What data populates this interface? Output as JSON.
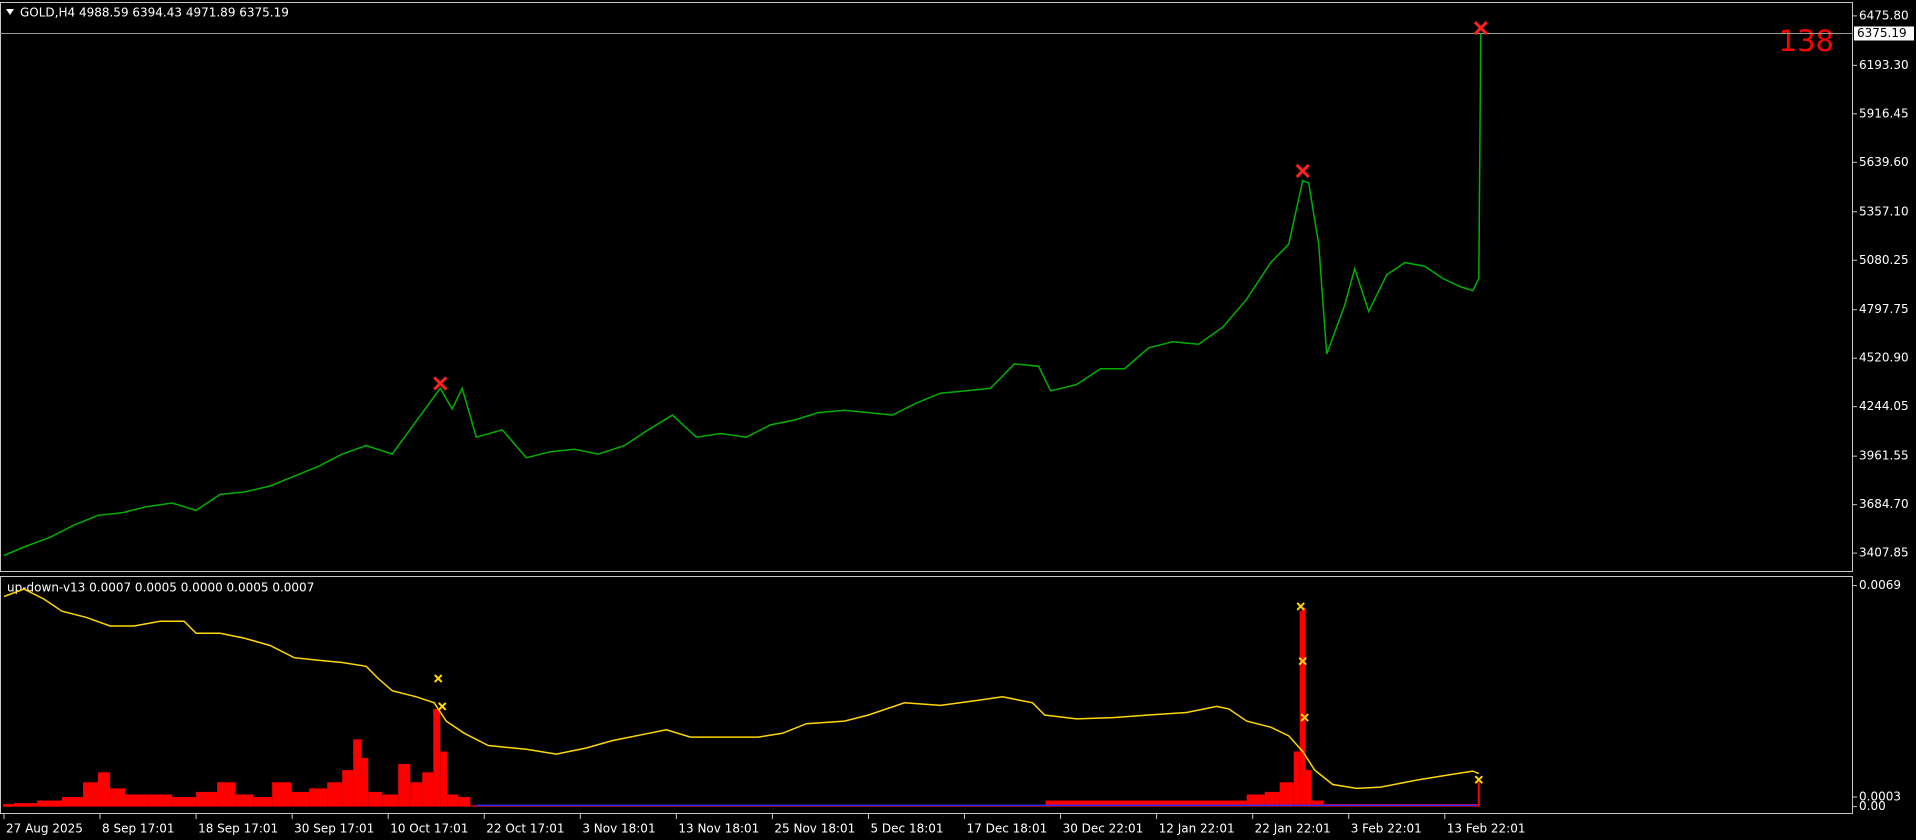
{
  "chart_data": [
    {
      "type": "line",
      "title": "GOLD,H4 4988.59 6394.43 4971.89 6375.19",
      "annotation": "138",
      "current_price": 6375.19,
      "ylim": [
        3300,
        6555
      ],
      "yticks": [
        {
          "value": 6475.8,
          "label": "6475.80"
        },
        {
          "value": 6193.3,
          "label": "6193.30"
        },
        5916.45,
        {
          "value": 5639.6,
          "label": "5639.60"
        },
        {
          "value": 5357.1,
          "label": "5357.10"
        },
        5080.25,
        4797.75,
        {
          "value": 4520.9,
          "label": "4520.90"
        },
        4244.05,
        3961.55,
        {
          "value": 3684.7,
          "label": "3684.70"
        },
        3407.85
      ],
      "xlim": [
        -2,
        924
      ],
      "xticks": [
        {
          "value": 0,
          "label": "27 Aug 2025"
        },
        {
          "value": 48,
          "label": "8 Sep 17:01"
        },
        {
          "value": 96,
          "label": "18 Sep 17:01"
        },
        {
          "value": 144,
          "label": "30 Sep 17:01"
        },
        {
          "value": 192,
          "label": "10 Oct 17:01"
        },
        {
          "value": 240,
          "label": "22 Oct 17:01"
        },
        {
          "value": 288,
          "label": "3 Nov 18:01"
        },
        {
          "value": 336,
          "label": "13 Nov 18:01"
        },
        {
          "value": 384,
          "label": "25 Nov 18:01"
        },
        {
          "value": 432,
          "label": "5 Dec 18:01"
        },
        {
          "value": 480,
          "label": "17 Dec 18:01"
        },
        {
          "value": 528,
          "label": "30 Dec 22:01"
        },
        {
          "value": 576,
          "label": "12 Jan 22:01"
        },
        {
          "value": 624,
          "label": "22 Jan 22:01"
        },
        {
          "value": 672,
          "label": "3 Feb 22:01"
        },
        {
          "value": 720,
          "label": "13 Feb 22:01"
        }
      ],
      "series": [
        {
          "color": "#00b000",
          "x": [
            0,
            10,
            23,
            35,
            47,
            59,
            71,
            84,
            96,
            108,
            120,
            133,
            145,
            157,
            169,
            181,
            194,
            206,
            218,
            224,
            229,
            236,
            249,
            261,
            273,
            285,
            297,
            310,
            322,
            334,
            346,
            358,
            371,
            383,
            395,
            407,
            420,
            432,
            444,
            456,
            468,
            481,
            493,
            505,
            517,
            523,
            536,
            548,
            560,
            572,
            584,
            597,
            609,
            621,
            633,
            642,
            649,
            652,
            657,
            661,
            670,
            675,
            682,
            691,
            700,
            710,
            719,
            728,
            734,
            737,
            738
          ],
          "values": [
            3394,
            3443,
            3498,
            3568,
            3624,
            3638,
            3673,
            3694,
            3652,
            3743,
            3757,
            3791,
            3847,
            3903,
            3973,
            4022,
            3973,
            4161,
            4349,
            4231,
            4349,
            4070,
            4112,
            3952,
            3987,
            4001,
            3973,
            4022,
            4112,
            4196,
            4070,
            4091,
            4070,
            4140,
            4168,
            4210,
            4224,
            4210,
            4196,
            4265,
            4321,
            4335,
            4349,
            4489,
            4475,
            4335,
            4370,
            4461,
            4461,
            4580,
            4615,
            4601,
            4698,
            4858,
            5067,
            5172,
            5535,
            5521,
            5172,
            4545,
            4823,
            5032,
            4788,
            4997,
            5067,
            5046,
            4976,
            4928,
            4907,
            4976,
            6375.19
          ]
        }
      ],
      "markers": {
        "color": "#ff2020",
        "x": [
          218,
          649,
          738
        ],
        "values": [
          4377,
          5590,
          6406
        ]
      }
    },
    {
      "type": "line",
      "title": "up-down-v13 0.0007 0.0005 0.0000 0.0005 0.0007",
      "ylim": [
        -0.00023,
        0.0072
      ],
      "yticks": [
        0.0069,
        {
          "value": 0,
          "label": "0.00"
        },
        0.0003
      ],
      "xlim": [
        -2,
        924
      ],
      "series": [
        {
          "color": "#ffd700",
          "x": [
            0,
            10,
            20,
            29,
            41,
            53,
            65,
            78,
            90,
            96,
            108,
            120,
            133,
            145,
            157,
            169,
            181,
            187,
            194,
            206,
            215,
            221,
            230,
            242,
            261,
            276,
            291,
            304,
            316,
            331,
            343,
            358,
            377,
            389,
            401,
            420,
            432,
            450,
            468,
            487,
            499,
            514,
            520,
            536,
            554,
            572,
            591,
            606,
            612,
            621,
            633,
            642,
            649,
            655,
            664,
            676,
            688,
            707,
            722,
            734,
            737
          ],
          "values": [
            0.00656,
            0.00679,
            0.00648,
            0.0061,
            0.00591,
            0.00564,
            0.00564,
            0.00579,
            0.00579,
            0.00541,
            0.00541,
            0.00526,
            0.00503,
            0.00465,
            0.00457,
            0.0045,
            0.00438,
            0.004,
            0.00362,
            0.00343,
            0.00324,
            0.00267,
            0.00229,
            0.00191,
            0.00179,
            0.00164,
            0.00183,
            0.00206,
            0.00221,
            0.0024,
            0.00217,
            0.00217,
            0.00217,
            0.00229,
            0.00259,
            0.00267,
            0.00286,
            0.00324,
            0.00316,
            0.00332,
            0.00343,
            0.00324,
            0.00286,
            0.00274,
            0.00278,
            0.00286,
            0.00294,
            0.00313,
            0.00305,
            0.00267,
            0.00248,
            0.00221,
            0.00172,
            0.00114,
            0.00069,
            0.00057,
            0.00061,
            0.00084,
            0.00099,
            0.00111,
            0.00103
          ]
        },
        {
          "color": "#ff0000",
          "type": "bar",
          "x": [
            0,
            10,
            23,
            35,
            44,
            50,
            56,
            65,
            78,
            90,
            102,
            111,
            120,
            129,
            139,
            148,
            157,
            166,
            172,
            177,
            180,
            184,
            194,
            200,
            206,
            212,
            217,
            219,
            224,
            230,
            236,
            426,
            615,
            627,
            633,
            642,
            647,
            648,
            649,
            652,
            655,
            664,
            736,
            737
          ],
          "values": [
            8e-05,
            0.00011,
            0.00019,
            0.0003,
            0.00076,
            0.00107,
            0.00057,
            0.00038,
            0.00038,
            0.0003,
            0.00046,
            0.00076,
            0.00038,
            0.0003,
            0.00076,
            0.00046,
            0.00057,
            0.00076,
            0.00114,
            0.0021,
            0.00152,
            0.00046,
            0.00038,
            0.00133,
            0.00076,
            0.00107,
            0.00305,
            0.00172,
            0.00038,
            0.0003,
            4e-05,
            4e-05,
            0.00019,
            0.00038,
            0.00046,
            0.00076,
            0.00172,
            0.0061,
            0.00621,
            0.00114,
            0.00019,
            8e-05,
            8e-05,
            0.00076
          ]
        },
        {
          "color": "#3030ff",
          "x": [
            236,
            736
          ],
          "values": [
            4e-05,
            4e-05
          ]
        }
      ],
      "markers": {
        "color": "#ffd700",
        "x": [
          217,
          219,
          648,
          649,
          650,
          737
        ],
        "values": [
          0.004,
          0.00313,
          0.00625,
          0.00454,
          0.00278,
          0.00084
        ]
      }
    }
  ]
}
